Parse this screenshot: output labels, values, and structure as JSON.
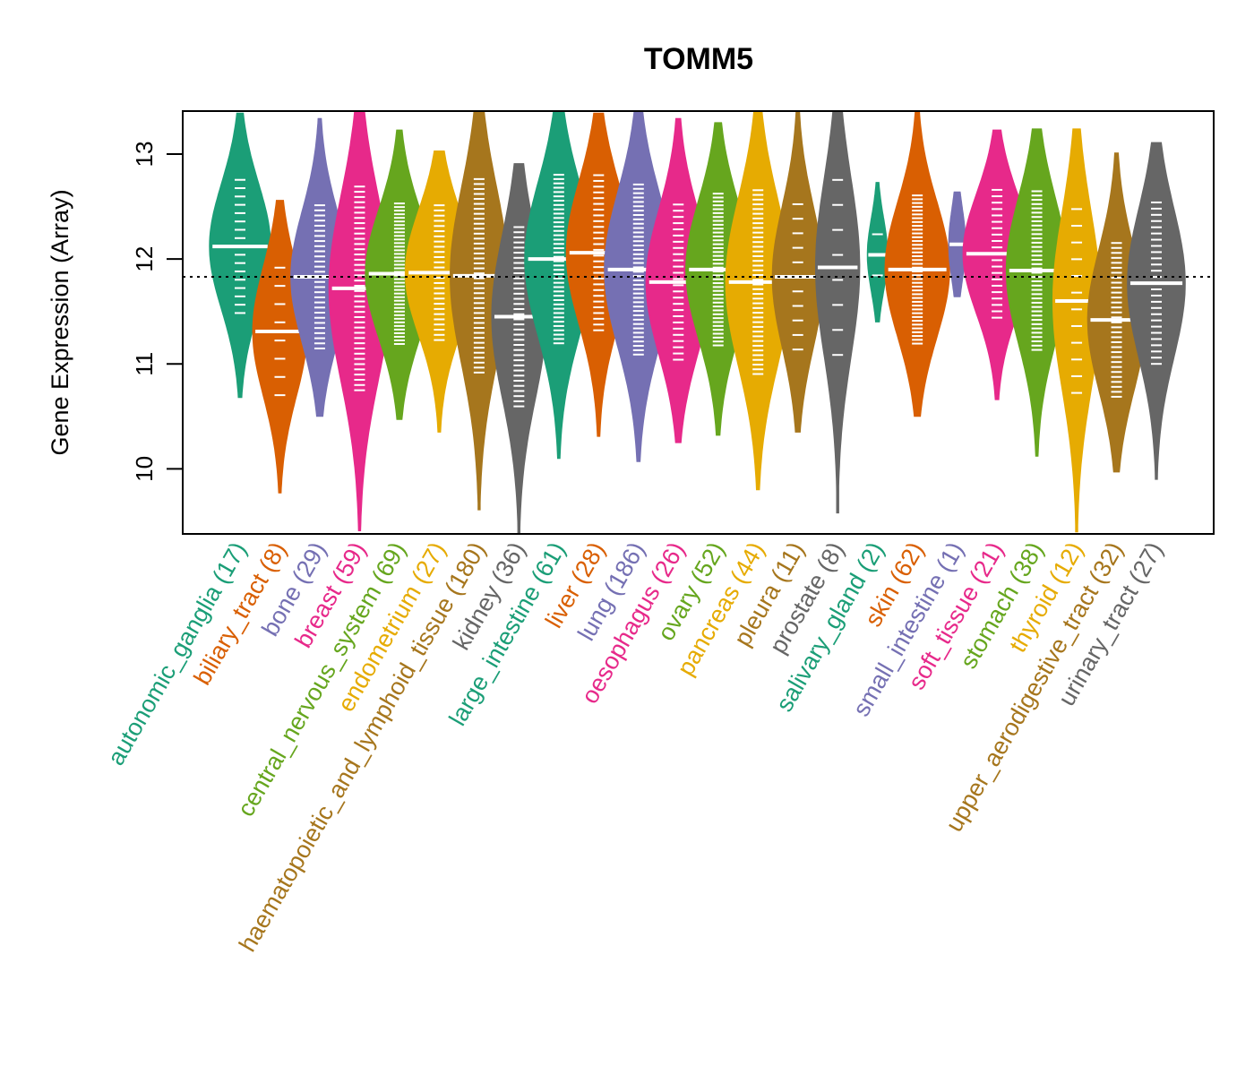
{
  "chart_data": {
    "type": "violin",
    "title": "TOMM5",
    "xlabel": "",
    "ylabel": "Gene Expression (Array)",
    "ylim": [
      9.38,
      13.41
    ],
    "yticks": [
      10,
      11,
      12,
      13
    ],
    "reference_line": 11.83,
    "grid": false,
    "legend": "none",
    "categories": [
      {
        "name": "autonomic_ganglia",
        "n": 17,
        "label": "autonomic_ganglia (17)",
        "color": "#1B9E77",
        "min": 10.68,
        "max": 13.39,
        "median": 12.12,
        "width": 0.9
      },
      {
        "name": "biliary_tract",
        "n": 8,
        "label": "biliary_tract (8)",
        "color": "#D95F02",
        "min": 9.77,
        "max": 12.56,
        "median": 11.31,
        "width": 0.8
      },
      {
        "name": "bone",
        "n": 29,
        "label": "bone (29)",
        "color": "#7570B3",
        "min": 10.5,
        "max": 13.34,
        "median": 11.83,
        "width": 0.85
      },
      {
        "name": "breast",
        "n": 59,
        "label": "breast (59)",
        "color": "#E7298A",
        "min": 9.41,
        "max": 13.41,
        "median": 11.72,
        "width": 0.9
      },
      {
        "name": "central_nervous_system",
        "n": 69,
        "label": "central_nervous_system (69)",
        "color": "#66A61E",
        "min": 10.47,
        "max": 13.23,
        "median": 11.86,
        "width": 1.0
      },
      {
        "name": "endometrium",
        "n": 27,
        "label": "endometrium (27)",
        "color": "#E6AB02",
        "min": 10.35,
        "max": 13.03,
        "median": 11.87,
        "width": 1.0
      },
      {
        "name": "haematopoietic_and_lymphoid_tissue",
        "n": 180,
        "label": "haematopoietic_and_lymphoid_tissue (180)",
        "color": "#A6761D",
        "min": 9.61,
        "max": 13.41,
        "median": 11.84,
        "width": 0.85
      },
      {
        "name": "kidney",
        "n": 36,
        "label": "kidney (36)",
        "color": "#666666",
        "min": 9.38,
        "max": 12.91,
        "median": 11.45,
        "width": 0.8
      },
      {
        "name": "large_intestine",
        "n": 61,
        "label": "large_intestine (61)",
        "color": "#1B9E77",
        "min": 10.1,
        "max": 13.41,
        "median": 12.0,
        "width": 1.0
      },
      {
        "name": "liver",
        "n": 28,
        "label": "liver (28)",
        "color": "#D95F02",
        "min": 10.31,
        "max": 13.39,
        "median": 12.06,
        "width": 0.95
      },
      {
        "name": "lung",
        "n": 186,
        "label": "lung (186)",
        "color": "#7570B3",
        "min": 10.07,
        "max": 13.41,
        "median": 11.9,
        "width": 1.0
      },
      {
        "name": "oesophagus",
        "n": 26,
        "label": "oesophagus (26)",
        "color": "#E7298A",
        "min": 10.25,
        "max": 13.34,
        "median": 11.78,
        "width": 0.95
      },
      {
        "name": "ovary",
        "n": 52,
        "label": "ovary (52)",
        "color": "#66A61E",
        "min": 10.32,
        "max": 13.3,
        "median": 11.9,
        "width": 0.95
      },
      {
        "name": "pancreas",
        "n": 44,
        "label": "pancreas (44)",
        "color": "#E6AB02",
        "min": 9.8,
        "max": 13.41,
        "median": 11.78,
        "width": 0.95
      },
      {
        "name": "pleura",
        "n": 11,
        "label": "pleura (11)",
        "color": "#A6761D",
        "min": 10.35,
        "max": 13.41,
        "median": 11.83,
        "width": 0.75
      },
      {
        "name": "prostate",
        "n": 8,
        "label": "prostate (8)",
        "color": "#666666",
        "min": 9.58,
        "max": 13.41,
        "median": 11.92,
        "width": 0.65
      },
      {
        "name": "salivary_gland",
        "n": 2,
        "label": "salivary_gland (2)",
        "color": "#1B9E77",
        "min": 11.4,
        "max": 12.73,
        "median": 12.04,
        "width": 0.3
      },
      {
        "name": "skin",
        "n": 62,
        "label": "skin (62)",
        "color": "#D95F02",
        "min": 10.5,
        "max": 13.41,
        "median": 11.9,
        "width": 0.95
      },
      {
        "name": "small_intestine",
        "n": 1,
        "label": "small_intestine (1)",
        "color": "#7570B3",
        "min": 11.64,
        "max": 12.64,
        "median": 12.14,
        "width": 0.25
      },
      {
        "name": "soft_tissue",
        "n": 21,
        "label": "soft_tissue (21)",
        "color": "#E7298A",
        "min": 10.66,
        "max": 13.23,
        "median": 12.05,
        "width": 1.0
      },
      {
        "name": "stomach",
        "n": 38,
        "label": "stomach (38)",
        "color": "#66A61E",
        "min": 10.12,
        "max": 13.24,
        "median": 11.89,
        "width": 0.9
      },
      {
        "name": "thyroid",
        "n": 12,
        "label": "thyroid (12)",
        "color": "#E6AB02",
        "min": 9.4,
        "max": 13.24,
        "median": 11.6,
        "width": 0.7
      },
      {
        "name": "upper_aerodigestive_tract",
        "n": 32,
        "label": "upper_aerodigestive_tract (32)",
        "color": "#A6761D",
        "min": 9.97,
        "max": 13.01,
        "median": 11.42,
        "width": 0.85
      },
      {
        "name": "urinary_tract",
        "n": 27,
        "label": "urinary_tract (27)",
        "color": "#666666",
        "min": 9.9,
        "max": 13.11,
        "median": 11.77,
        "width": 0.85
      }
    ]
  }
}
